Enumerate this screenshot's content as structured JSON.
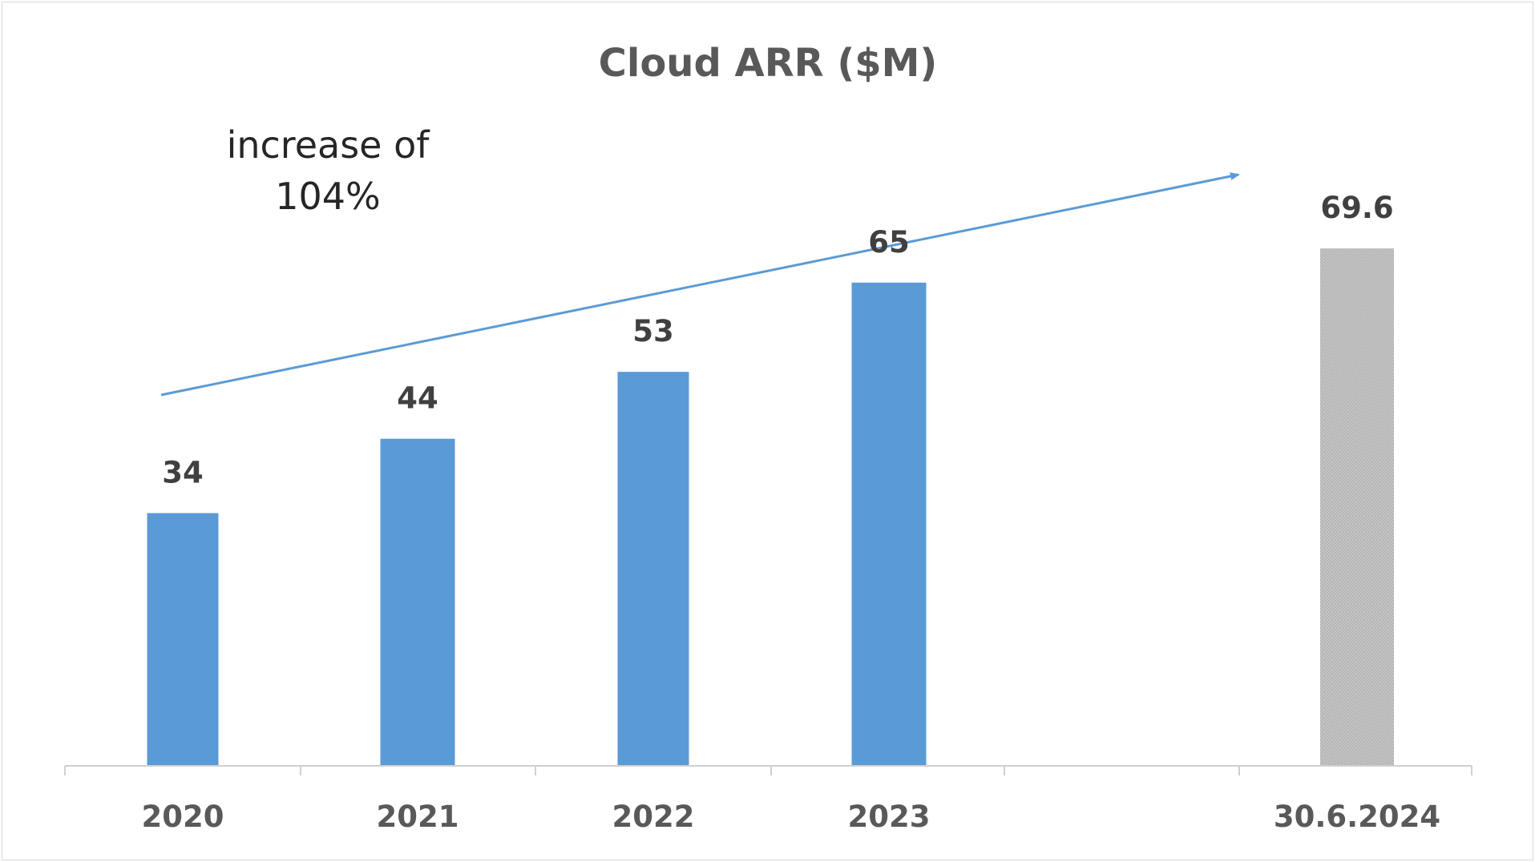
{
  "chart_data": {
    "type": "bar",
    "title": "Cloud ARR ($M)",
    "xlabel": "",
    "ylabel": "",
    "categories": [
      "2020",
      "2021",
      "2022",
      "2023",
      "30.6.2024"
    ],
    "values": [
      34,
      44,
      53,
      65,
      69.6
    ],
    "data_labels": [
      "34",
      "44",
      "53",
      "65",
      "69.6"
    ],
    "ylim": [
      0,
      100
    ],
    "grid": false,
    "legend": "none",
    "bar_colors": [
      "#5b9bd5",
      "#5b9bd5",
      "#5b9bd5",
      "#5b9bd5",
      "#c0c0c0"
    ],
    "annotation": {
      "line1": "increase of",
      "line2": "104%",
      "arrow_color": "#5b9bd5"
    }
  }
}
